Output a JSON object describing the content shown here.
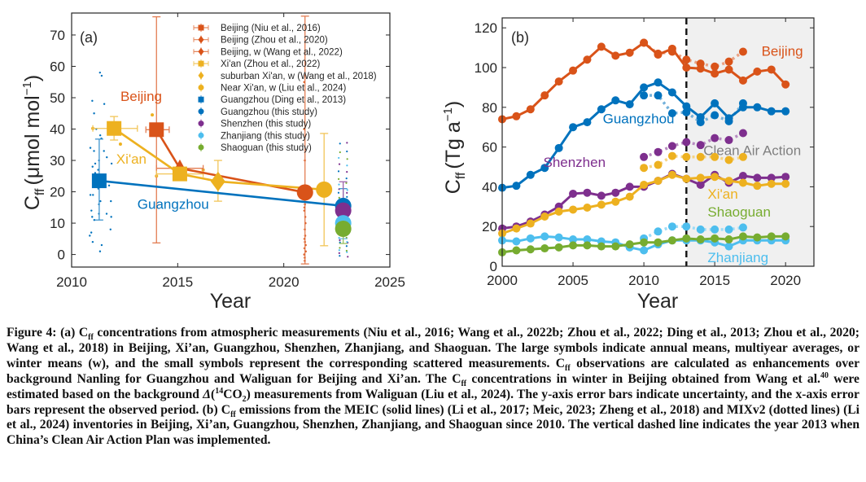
{
  "figure": {
    "caption_html": "Figure 4: (a) C<sub>ff</sub> concentrations from atmospheric measurements (Niu et al., 2016; Wang et al., 2022b; Zhou et al., 2022; Ding et al., 2013; Zhou et al., 2020; Wang et al., 2018) in Beijing, Xi’an, Guangzhou, Shenzhen, Zhanjiang, and Shaoguan. The large symbols indicate annual means, multiyear averages, or winter means (w), and the small symbols represent the corresponding scattered measurements. C<sub>ff</sub> observations are calculated as enhancements over background Nanling for Guangzhou and Waliguan for Beijing and Xi’an. The C<sub>ff</sub> concentrations in winter in Beijing obtained from Wang et al.<sup>40</sup> were estimated based on the background <i>Δ</i>(<sup>14</sup>CO<sub>2</sub>) measurements from Waliguan (Liu et al., 2024). The y-axis error bars indicate uncertainty, and the x-axis error bars represent the observed period. (b) C<sub>ff</sub> emissions from the MEIC (solid lines) (Li et al., 2017; Meic, 2023; Zheng et al., 2018) and MIXv2 (dotted lines) (Li et al., 2024) inventories in Beijing, Xi’an, Guangzhou, Shenzhen, Zhanjiang, and Shaoguan since 2010. The vertical dashed line indicates the year 2013 when China’s Clean Air Action Plan was implemented."
  },
  "colors": {
    "beijing": "#D95319",
    "xian": "#EDB120",
    "guangzhou": "#0072BD",
    "shenzhen": "#7E2F8E",
    "zhanjiang": "#4DBEEE",
    "shaoguan": "#77AC30",
    "axis": "#262626",
    "shade": "#F0F0F0",
    "clean_air_text": "#808080"
  },
  "chart_data": [
    {
      "panel": "(a)",
      "type": "scatter",
      "xlabel": "Year",
      "ylabel_main": "C",
      "ylabel_sub": "ff",
      "ylabel_unit": "(μmol mol",
      "ylabel_sup": "−1",
      "ylabel_close": ")",
      "xlim": [
        2010,
        2025
      ],
      "ylim": [
        -4,
        77
      ],
      "xticks": [
        2010,
        2015,
        2020,
        2025
      ],
      "yticks": [
        0,
        10,
        20,
        30,
        40,
        50,
        60,
        70
      ],
      "legend_position": "top-right",
      "legend": [
        {
          "label": "Beijing (Niu et al., 2016)",
          "color_key": "beijing",
          "marker": "square"
        },
        {
          "label": "Beijing (Zhou et al., 2020)",
          "color_key": "beijing",
          "marker": "diamond"
        },
        {
          "label": "Beijing, w (Wang et al., 2022)",
          "color_key": "beijing",
          "marker": "diamond"
        },
        {
          "label": "Xi'an (Zhou et al., 2022)",
          "color_key": "xian",
          "marker": "square"
        },
        {
          "label": "suburban Xi'an, w (Wang et al., 2018)",
          "color_key": "xian",
          "marker": "diamond"
        },
        {
          "label": "Near Xi'an, w (Liu et al., 2024)",
          "color_key": "xian",
          "marker": "circle"
        },
        {
          "label": "Guangzhou (Ding et al., 2013)",
          "color_key": "guangzhou",
          "marker": "square"
        },
        {
          "label": "Guangzhou (this study)",
          "color_key": "guangzhou",
          "marker": "circle"
        },
        {
          "label": "Shenzhen (this study)",
          "color_key": "shenzhen",
          "marker": "circle"
        },
        {
          "label": "Zhanjiang (this study)",
          "color_key": "zhanjiang",
          "marker": "circle"
        },
        {
          "label": "Shaoguan (this study)",
          "color_key": "shaoguan",
          "marker": "circle"
        }
      ],
      "annotations": [
        {
          "text": "Beijing",
          "color_key": "beijing",
          "x": 2012.3,
          "y": 49
        },
        {
          "text": "Xi'an",
          "color_key": "xian",
          "x": 2012.1,
          "y": 29
        },
        {
          "text": "Guangzhou",
          "color_key": "guangzhou",
          "x": 2013.1,
          "y": 14.5
        }
      ],
      "series": [
        {
          "name": "Beijing",
          "color_key": "beijing",
          "line": true,
          "points": [
            {
              "x": 2014.0,
              "y": 39.8,
              "marker": "square",
              "xerr": [
                2013.5,
                2014.6
              ],
              "yerr": [
                3.7,
                75.8
              ]
            },
            {
              "x": 2015.1,
              "y": 27.5,
              "marker": "triangle",
              "xerr": [
                2014.0,
                2016.2
              ],
              "yerr": null
            },
            {
              "x": 2021.0,
              "y": 19.8,
              "marker": "circle",
              "xerr": null,
              "yerr": [
                -3,
                76
              ]
            }
          ]
        },
        {
          "name": "Xi'an",
          "color_key": "xian",
          "line": true,
          "points": [
            {
              "x": 2012.0,
              "y": 40.2,
              "marker": "square",
              "xerr": [
                2011.0,
                2013.1
              ],
              "yerr": [
                36.5,
                44.0
              ]
            },
            {
              "x": 2015.1,
              "y": 25.7,
              "marker": "square",
              "xerr": [
                2014.0,
                2016.2
              ],
              "yerr": null
            },
            {
              "x": 2016.9,
              "y": 23.3,
              "marker": "diamond",
              "xerr": null,
              "yerr": [
                17.0,
                30.0
              ]
            },
            {
              "x": 2021.9,
              "y": 20.7,
              "marker": "circle",
              "xerr": null,
              "yerr": [
                2.8,
                38.6
              ]
            }
          ]
        },
        {
          "name": "Guangzhou",
          "color_key": "guangzhou",
          "line": true,
          "points": [
            {
              "x": 2011.3,
              "y": 23.5,
              "marker": "square",
              "xerr": null,
              "yerr": [
                11.0,
                36.8
              ]
            },
            {
              "x": 2022.8,
              "y": 15.5,
              "marker": "circle",
              "xerr": null,
              "yerr": [
                12.0,
                21.0
              ]
            }
          ]
        },
        {
          "name": "Shenzhen",
          "color_key": "shenzhen",
          "line": false,
          "points": [
            {
              "x": 2022.8,
              "y": 14.0,
              "marker": "circle",
              "xerr": null,
              "yerr": [
                5.0,
                23.2
              ]
            }
          ]
        },
        {
          "name": "Zhanjiang",
          "color_key": "zhanjiang",
          "line": false,
          "points": [
            {
              "x": 2022.8,
              "y": 10.0,
              "marker": "circle",
              "xerr": null,
              "yerr": [
                5.0,
                16.0
              ]
            }
          ]
        },
        {
          "name": "Shaoguan",
          "color_key": "shaoguan",
          "line": false,
          "points": [
            {
              "x": 2022.8,
              "y": 8.2,
              "marker": "circle",
              "xerr": null,
              "yerr": [
                3.5,
                15.5
              ]
            }
          ]
        }
      ],
      "scatter_small": {
        "guangzhou_2011": {
          "color_key": "guangzhou",
          "x_range": [
            2010.8,
            2011.9
          ],
          "y": [
            1,
            3,
            7,
            11,
            13,
            17,
            19,
            22,
            25,
            27,
            29,
            31,
            33,
            34,
            38,
            45,
            48,
            49,
            57,
            58,
            4,
            6,
            8,
            12,
            14,
            16,
            17,
            19,
            21,
            23,
            25,
            26,
            28,
            29,
            30,
            33,
            37,
            40,
            12,
            13
          ]
        },
        "xian_2012": {
          "color_key": "xian",
          "points": [
            [
              2011.0,
              40.2
            ],
            [
              2012.3,
              35.2
            ],
            [
              2013.8,
              44.5
            ]
          ]
        },
        "xian_2015": {
          "color_key": "xian",
          "points": [
            [
              2014.0,
              25.0
            ],
            [
              2016.2,
              27.0
            ]
          ]
        },
        "beijing_2021": {
          "color_key": "beijing",
          "x": 2021.0,
          "y": [
            -2,
            -1,
            0,
            1,
            2,
            3,
            4,
            5,
            6,
            8,
            10,
            12,
            14,
            15,
            16,
            55,
            40,
            30
          ]
        },
        "this_study_2022": {
          "x_range": [
            2022.6,
            2023.0
          ],
          "y": [
            -1,
            0,
            1,
            2,
            3,
            4,
            5,
            6,
            7,
            8,
            9,
            10,
            11,
            12,
            13,
            14,
            15,
            16,
            17,
            18,
            19,
            20,
            22,
            24,
            26,
            28,
            30,
            32,
            35
          ]
        }
      }
    },
    {
      "panel": "(b)",
      "type": "line",
      "xlabel": "Year",
      "ylabel_main": "C",
      "ylabel_sub": "ff",
      "ylabel_unit": "(Tg a",
      "ylabel_sup": "−1",
      "ylabel_close": ")",
      "xlim": [
        2000,
        2022
      ],
      "ylim": [
        0,
        125
      ],
      "xticks": [
        2000,
        2005,
        2010,
        2015,
        2020
      ],
      "yticks": [
        0,
        20,
        40,
        60,
        80,
        100,
        120
      ],
      "vline": {
        "x": 2013,
        "style": "dashed"
      },
      "shade_from": 2013,
      "shade_label": "Clean Air Action",
      "annotations": [
        {
          "text": "Beijing",
          "color_key": "beijing",
          "x": 2018.3,
          "y": 106
        },
        {
          "text": "Guangzhou",
          "color_key": "guangzhou",
          "x": 2007.1,
          "y": 72
        },
        {
          "text": "Shenzhen",
          "color_key": "shenzhen",
          "x": 2002.9,
          "y": 50
        },
        {
          "text": "Xi'an",
          "color_key": "xian",
          "x": 2014.5,
          "y": 34
        },
        {
          "text": "Shaoguan",
          "color_key": "shaoguan",
          "x": 2014.5,
          "y": 25
        },
        {
          "text": "Zhanjiang",
          "color_key": "zhanjiang",
          "x": 2014.5,
          "y": 2
        }
      ],
      "series": [
        {
          "name": "Beijing MEIC",
          "color_key": "beijing",
          "style": "solid",
          "x": [
            2000,
            2001,
            2002,
            2003,
            2004,
            2005,
            2006,
            2007,
            2008,
            2009,
            2010,
            2011,
            2012,
            2013,
            2014,
            2015,
            2016,
            2017,
            2018,
            2019,
            2020
          ],
          "y": [
            74,
            75.5,
            79,
            86,
            93,
            98.5,
            104,
            110.5,
            106,
            107.5,
            112.5,
            106.5,
            109.5,
            100,
            99.5,
            97,
            99,
            93.5,
            98,
            99,
            91.5
          ]
        },
        {
          "name": "Beijing MIXv2",
          "color_key": "beijing",
          "style": "dotted",
          "x": [
            2010,
            2011,
            2012,
            2013,
            2014,
            2015,
            2016,
            2017
          ],
          "y": [
            112.5,
            107,
            108,
            104,
            102,
            100.5,
            103,
            108
          ]
        },
        {
          "name": "Guangzhou MEIC",
          "color_key": "guangzhou",
          "style": "solid",
          "x": [
            2000,
            2001,
            2002,
            2003,
            2004,
            2005,
            2006,
            2007,
            2008,
            2009,
            2010,
            2011,
            2012,
            2013,
            2014,
            2015,
            2016,
            2017,
            2018,
            2019,
            2020
          ],
          "y": [
            39.5,
            40.5,
            46,
            49.5,
            59.5,
            70,
            72.5,
            79,
            83.5,
            81.5,
            90,
            92.5,
            87.5,
            80.5,
            75,
            82,
            74.5,
            80,
            80,
            78,
            78
          ]
        },
        {
          "name": "Guangzhou MIXv2",
          "color_key": "guangzhou",
          "style": "dotted",
          "x": [
            2010,
            2011,
            2012,
            2013,
            2014,
            2015,
            2016,
            2017
          ],
          "y": [
            86,
            86,
            77,
            77.5,
            72.5,
            76,
            73,
            82
          ]
        },
        {
          "name": "Shenzhen MEIC",
          "color_key": "shenzhen",
          "style": "solid",
          "x": [
            2000,
            2001,
            2002,
            2003,
            2004,
            2005,
            2006,
            2007,
            2008,
            2009,
            2010,
            2011,
            2012,
            2013,
            2014,
            2015,
            2016,
            2017,
            2018,
            2019,
            2020
          ],
          "y": [
            19,
            20,
            22.5,
            26,
            30,
            36.5,
            37,
            35.5,
            37,
            40,
            40,
            43,
            46.5,
            44,
            41,
            46,
            42,
            45.5,
            44.5,
            44.5,
            45
          ]
        },
        {
          "name": "Shenzhen MIXv2",
          "color_key": "shenzhen",
          "style": "dotted",
          "x": [
            2010,
            2011,
            2012,
            2013,
            2014,
            2015,
            2016,
            2017
          ],
          "y": [
            55,
            57.5,
            60.5,
            62.5,
            61,
            64.5,
            63.5,
            67
          ]
        },
        {
          "name": "Xi'an MEIC",
          "color_key": "xian",
          "style": "solid",
          "x": [
            2000,
            2001,
            2002,
            2003,
            2004,
            2005,
            2006,
            2007,
            2008,
            2009,
            2010,
            2011,
            2012,
            2013,
            2014,
            2015,
            2016,
            2017,
            2018,
            2019,
            2020
          ],
          "y": [
            16.5,
            19,
            21.5,
            25,
            27.5,
            28.5,
            29.5,
            31,
            32.5,
            35,
            41,
            43,
            46,
            44,
            44.5,
            45,
            43,
            42,
            40.5,
            41.5,
            41.5
          ]
        },
        {
          "name": "Xi'an MIXv2",
          "color_key": "xian",
          "style": "dotted",
          "x": [
            2010,
            2011,
            2012,
            2013,
            2014,
            2015,
            2016,
            2017
          ],
          "y": [
            49.5,
            51,
            55.5,
            55,
            55,
            55,
            53.5,
            55
          ]
        },
        {
          "name": "Zhanjiang MEIC",
          "color_key": "zhanjiang",
          "style": "solid",
          "x": [
            2000,
            2001,
            2002,
            2003,
            2004,
            2005,
            2006,
            2007,
            2008,
            2009,
            2010,
            2011,
            2012,
            2013,
            2014,
            2015,
            2016,
            2017,
            2018,
            2019,
            2020
          ],
          "y": [
            13,
            12.5,
            14,
            15,
            14.5,
            13.5,
            13.5,
            12.5,
            12,
            9.5,
            8,
            11,
            13,
            13,
            13,
            12,
            10,
            13,
            13,
            13,
            13
          ]
        },
        {
          "name": "Zhanjiang MIXv2",
          "color_key": "zhanjiang",
          "style": "dotted",
          "x": [
            2010,
            2011,
            2012,
            2013,
            2014,
            2015,
            2016,
            2017
          ],
          "y": [
            14,
            17.5,
            20,
            20,
            18.5,
            18.5,
            18.5,
            19.5
          ]
        },
        {
          "name": "Shaoguan MEIC",
          "color_key": "shaoguan",
          "style": "solid",
          "x": [
            2000,
            2001,
            2002,
            2003,
            2004,
            2005,
            2006,
            2007,
            2008,
            2009,
            2010,
            2011,
            2012,
            2013,
            2014,
            2015,
            2016,
            2017,
            2018,
            2019,
            2020
          ],
          "y": [
            7,
            8,
            8.5,
            9,
            9.5,
            10.5,
            10.5,
            10,
            10,
            11,
            12,
            12,
            13,
            14,
            13.5,
            14,
            13.5,
            15,
            14.5,
            15,
            15
          ]
        }
      ]
    }
  ]
}
